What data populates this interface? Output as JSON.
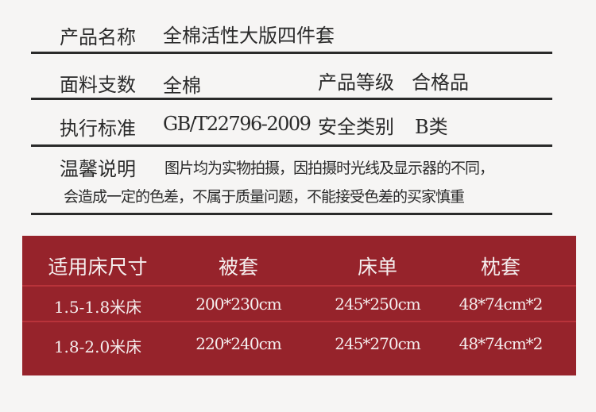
{
  "info": {
    "product_name_label": "产品名称",
    "product_name_value": "全棉活性大版四件套",
    "fabric_label": "面料支数",
    "fabric_value": "全棉",
    "grade_label": "产品等级",
    "grade_value": "合格品",
    "standard_label": "执行标准",
    "standard_value": "GB/T22796-2009",
    "safety_label": "安全类别",
    "safety_value": "B类",
    "notice_label": "温馨说明",
    "notice_line1": "图片均为实物拍摄，因拍摄时光线及显示器的不同，",
    "notice_line2": "会造成一定的色差，不属于质量问题，不能接受色差的买家慎重"
  },
  "size_table": {
    "headers": [
      "适用床尺寸",
      "被套",
      "床单",
      "枕套"
    ],
    "rows": [
      [
        "1.5-1.8米床",
        "200*230cm",
        "245*250cm",
        "48*74cm*2"
      ],
      [
        "1.8-2.0米床",
        "220*240cm",
        "245*270cm",
        "48*74cm*2"
      ]
    ],
    "background_color": "#96232b"
  }
}
